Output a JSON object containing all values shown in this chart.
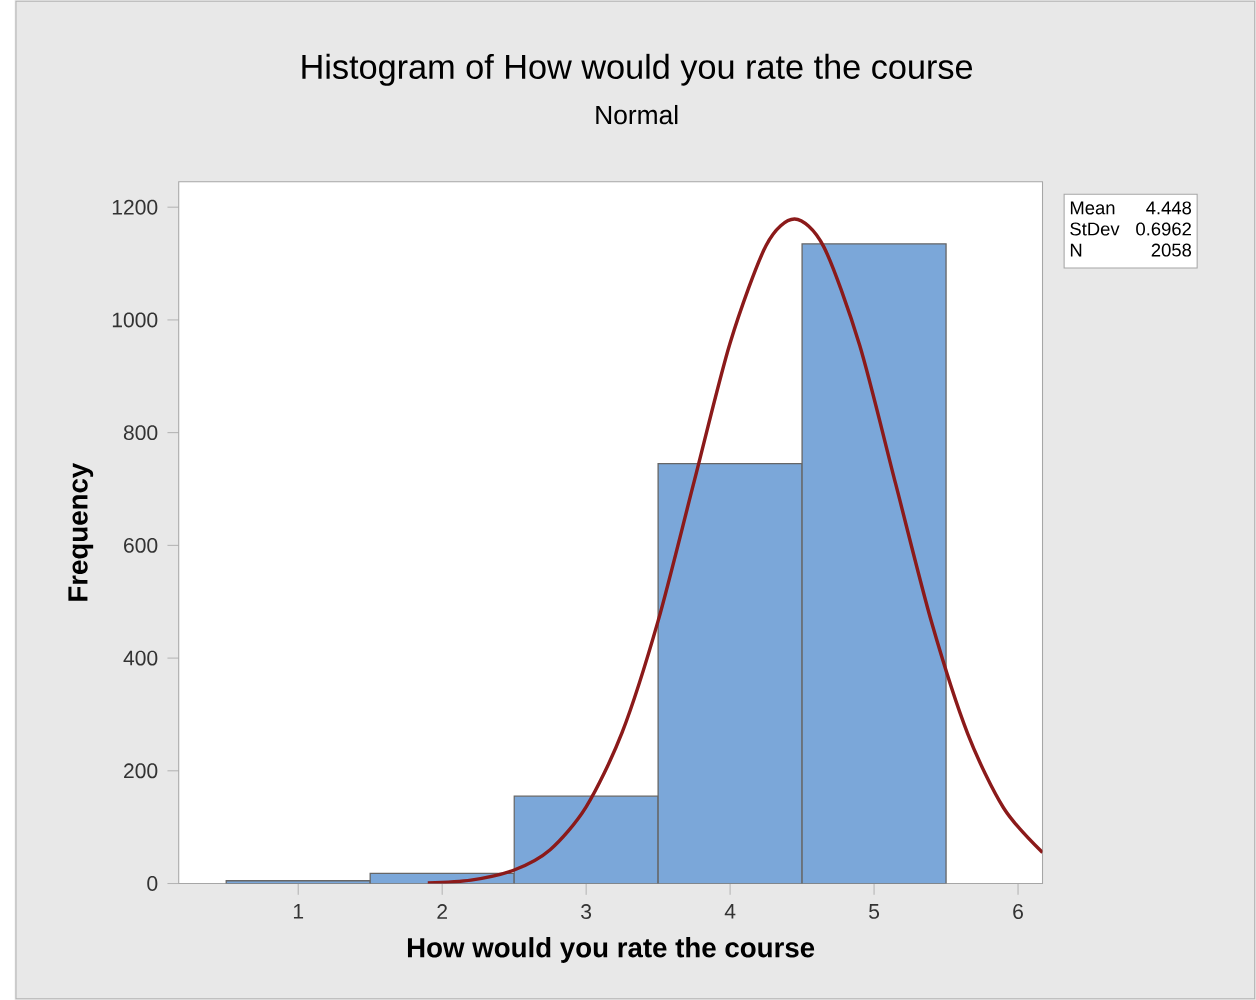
{
  "chart_data": {
    "type": "histogram",
    "title": "Histogram of How would you rate the course",
    "subtitle": "Normal",
    "xlabel": "How would you rate the course",
    "ylabel": "Frequency",
    "bins": [
      0.5,
      1.5,
      2.5,
      3.5,
      4.5,
      5.5
    ],
    "values": [
      5,
      18,
      155,
      745,
      1135
    ],
    "color": "#7ba7d9",
    "series": [
      {
        "type": "line",
        "color": "#8b1a1a",
        "x": [
          1.9,
          2.2,
          2.5,
          2.75,
          3.0,
          3.25,
          3.5,
          3.75,
          4.0,
          4.25,
          4.448,
          4.65,
          4.9,
          5.15,
          5.4,
          5.65,
          5.9,
          6.17
        ],
        "values": [
          1,
          6,
          24,
          60,
          136,
          268,
          466,
          713,
          959,
          1132,
          1179,
          1130,
          955,
          709,
          463,
          266,
          134,
          55
        ]
      }
    ],
    "xlim": [
      0.17,
      6.17
    ],
    "ylim": [
      0,
      1245
    ],
    "xticks": [
      1,
      2,
      3,
      4,
      5,
      6
    ],
    "yticks": [
      0,
      200,
      400,
      600,
      800,
      1000,
      1200
    ],
    "annotations": [
      "Mean",
      "4.448",
      "StDev",
      "0.6962",
      "N",
      "2058"
    ]
  }
}
